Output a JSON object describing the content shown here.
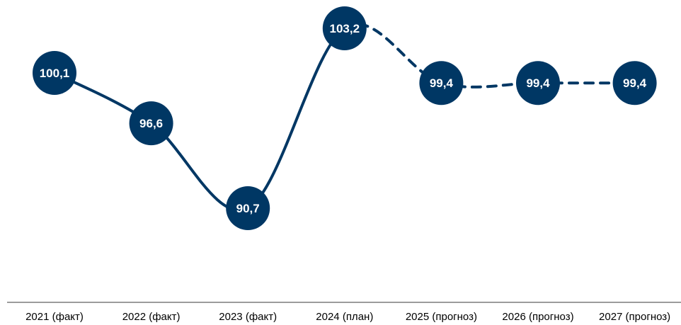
{
  "chart_data": {
    "type": "line",
    "categories": [
      "2021 (факт)",
      "2022 (факт)",
      "2023 (факт)",
      "2024 (план)",
      "2025 (прогноз)",
      "2026 (прогноз)",
      "2027 (прогноз)"
    ],
    "values": [
      100.1,
      96.6,
      90.7,
      103.2,
      99.4,
      99.4,
      99.4
    ],
    "value_labels": [
      "100,1",
      "96,6",
      "90,7",
      "103,2",
      "99,4",
      "99,4",
      "99,4"
    ],
    "segment_styles": [
      "solid",
      "solid",
      "solid",
      "dashed",
      "dashed",
      "dashed"
    ],
    "ylim": [
      85,
      105
    ],
    "grid": false,
    "color": "#003764"
  }
}
